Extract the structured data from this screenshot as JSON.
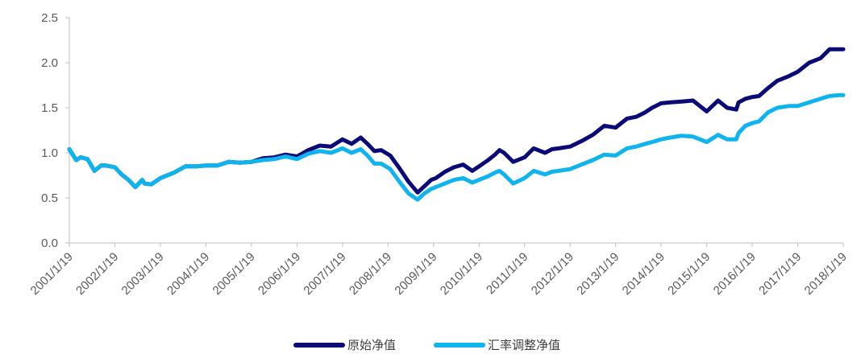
{
  "chart_data": {
    "type": "line",
    "title": "",
    "xlabel": "",
    "ylabel": "",
    "ylim": [
      0.0,
      2.5
    ],
    "yticks": [
      "0.0",
      "0.5",
      "1.0",
      "1.5",
      "2.0",
      "2.5"
    ],
    "xticks": [
      "2001/1/19",
      "2002/1/19",
      "2003/1/19",
      "2004/1/19",
      "2005/1/19",
      "2006/1/19",
      "2007/1/19",
      "2008/1/19",
      "2009/1/19",
      "2010/1/19",
      "2011/1/19",
      "2012/1/19",
      "2013/1/19",
      "2014/1/19",
      "2015/1/19",
      "2016/1/19",
      "2017/1/19",
      "2018/1/19"
    ],
    "xlim": [
      2001.05,
      2018.05
    ],
    "grid": false,
    "legend_position": "bottom",
    "series": [
      {
        "name": "原始净值",
        "color": "#0a0a78",
        "x": [
          2001.05,
          2001.2,
          2001.3,
          2001.45,
          2001.6,
          2001.75,
          2001.85,
          2002.05,
          2002.2,
          2002.35,
          2002.5,
          2002.65,
          2002.7,
          2002.85,
          2003.05,
          2003.2,
          2003.35,
          2003.6,
          2003.85,
          2004.05,
          2004.3,
          2004.55,
          2004.8,
          2005.05,
          2005.3,
          2005.55,
          2005.8,
          2006.05,
          2006.3,
          2006.55,
          2006.8,
          2007.05,
          2007.25,
          2007.45,
          2007.6,
          2007.75,
          2007.9,
          2008.1,
          2008.3,
          2008.5,
          2008.7,
          2008.85,
          2009.0,
          2009.1,
          2009.3,
          2009.5,
          2009.7,
          2009.9,
          2010.05,
          2010.25,
          2010.4,
          2010.5,
          2010.6,
          2010.8,
          2011.05,
          2011.25,
          2011.5,
          2011.65,
          2011.8,
          2012.05,
          2012.3,
          2012.55,
          2012.8,
          2013.05,
          2013.3,
          2013.5,
          2013.7,
          2013.85,
          2014.05,
          2014.25,
          2014.5,
          2014.75,
          2015.05,
          2015.3,
          2015.5,
          2015.7,
          2015.75,
          2015.9,
          2016.05,
          2016.2,
          2016.4,
          2016.6,
          2016.85,
          2017.05,
          2017.3,
          2017.55,
          2017.75,
          2017.95,
          2018.05
        ],
        "values": [
          1.04,
          0.92,
          0.95,
          0.93,
          0.8,
          0.86,
          0.86,
          0.84,
          0.76,
          0.7,
          0.62,
          0.7,
          0.66,
          0.65,
          0.72,
          0.75,
          0.78,
          0.85,
          0.85,
          0.86,
          0.86,
          0.9,
          0.89,
          0.9,
          0.94,
          0.95,
          0.98,
          0.96,
          1.03,
          1.08,
          1.07,
          1.15,
          1.1,
          1.17,
          1.1,
          1.02,
          1.03,
          0.97,
          0.83,
          0.68,
          0.56,
          0.63,
          0.7,
          0.72,
          0.79,
          0.84,
          0.87,
          0.8,
          0.85,
          0.92,
          0.98,
          1.03,
          1.0,
          0.9,
          0.95,
          1.05,
          1.0,
          1.04,
          1.05,
          1.07,
          1.13,
          1.2,
          1.3,
          1.28,
          1.38,
          1.4,
          1.45,
          1.5,
          1.55,
          1.56,
          1.57,
          1.58,
          1.46,
          1.58,
          1.5,
          1.48,
          1.56,
          1.6,
          1.62,
          1.63,
          1.72,
          1.8,
          1.85,
          1.9,
          2.0,
          2.05,
          2.15,
          2.15,
          2.15
        ]
      },
      {
        "name": "汇率调整净值",
        "color": "#0fb4ee",
        "x": [
          2001.05,
          2001.2,
          2001.3,
          2001.45,
          2001.6,
          2001.75,
          2001.85,
          2002.05,
          2002.2,
          2002.35,
          2002.5,
          2002.65,
          2002.7,
          2002.85,
          2003.05,
          2003.2,
          2003.35,
          2003.6,
          2003.85,
          2004.05,
          2004.3,
          2004.55,
          2004.8,
          2005.05,
          2005.3,
          2005.55,
          2005.8,
          2006.05,
          2006.3,
          2006.55,
          2006.8,
          2007.05,
          2007.25,
          2007.45,
          2007.6,
          2007.75,
          2007.9,
          2008.1,
          2008.3,
          2008.5,
          2008.7,
          2008.85,
          2009.0,
          2009.1,
          2009.3,
          2009.5,
          2009.7,
          2009.9,
          2010.05,
          2010.25,
          2010.4,
          2010.5,
          2010.6,
          2010.8,
          2011.05,
          2011.25,
          2011.5,
          2011.65,
          2011.8,
          2012.05,
          2012.3,
          2012.55,
          2012.8,
          2013.05,
          2013.3,
          2013.5,
          2013.7,
          2013.85,
          2014.05,
          2014.25,
          2014.5,
          2014.75,
          2015.05,
          2015.3,
          2015.5,
          2015.7,
          2015.75,
          2015.9,
          2016.05,
          2016.2,
          2016.4,
          2016.6,
          2016.85,
          2017.05,
          2017.3,
          2017.55,
          2017.75,
          2017.95,
          2018.05
        ],
        "values": [
          1.04,
          0.92,
          0.95,
          0.93,
          0.8,
          0.86,
          0.86,
          0.84,
          0.76,
          0.7,
          0.62,
          0.7,
          0.66,
          0.65,
          0.72,
          0.75,
          0.78,
          0.85,
          0.85,
          0.86,
          0.86,
          0.9,
          0.89,
          0.9,
          0.92,
          0.93,
          0.96,
          0.93,
          0.99,
          1.02,
          1.0,
          1.05,
          1.0,
          1.04,
          0.97,
          0.88,
          0.88,
          0.82,
          0.68,
          0.55,
          0.48,
          0.55,
          0.6,
          0.62,
          0.66,
          0.7,
          0.72,
          0.67,
          0.7,
          0.74,
          0.78,
          0.8,
          0.76,
          0.66,
          0.72,
          0.8,
          0.76,
          0.79,
          0.8,
          0.82,
          0.87,
          0.92,
          0.98,
          0.97,
          1.05,
          1.07,
          1.1,
          1.12,
          1.15,
          1.17,
          1.19,
          1.18,
          1.12,
          1.2,
          1.15,
          1.15,
          1.22,
          1.3,
          1.33,
          1.35,
          1.45,
          1.5,
          1.52,
          1.52,
          1.56,
          1.6,
          1.63,
          1.64,
          1.64
        ]
      }
    ]
  }
}
